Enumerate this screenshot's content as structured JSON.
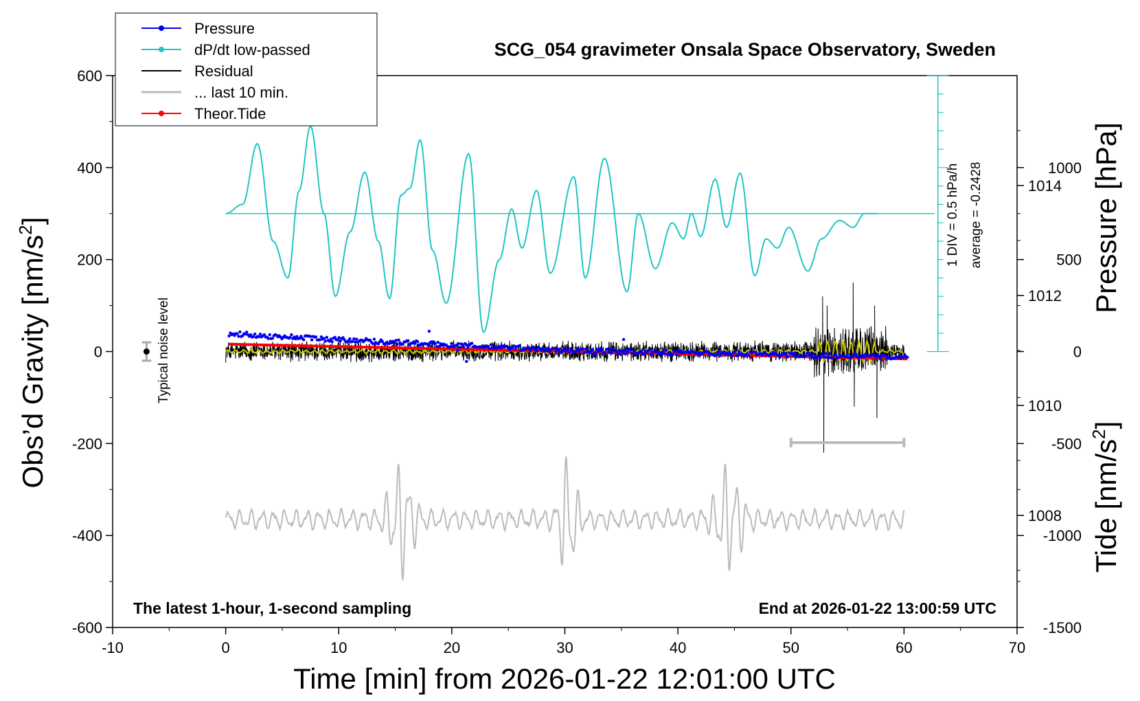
{
  "chart_data": {
    "type": "line",
    "title": "SCG_054 gravimeter Onsala Space Observatory, Sweden",
    "xlabel": "Time [min] from 2026-01-22 12:01:00 UTC",
    "ylabel_left": "Obs’d Gravity [nm/s²]",
    "ylabel_left_main": "Obs’d Gravity [nm/s",
    "ylabel_left_sup": "2",
    "ylabel_left_end": "]",
    "ylabel_right_top": "Pressure [hPa]",
    "ylabel_right_bottom": "Tide [nm/s²]",
    "ylabel_right_bottom_main": "Tide [nm/s",
    "ylabel_right_bottom_sup": "2",
    "ylabel_right_bottom_end": "]",
    "xlim": [
      -10,
      70
    ],
    "ylim_left": [
      -600,
      600
    ],
    "ylim_pressure": [
      1005.96,
      1016.0
    ],
    "ylim_tide": [
      -1500,
      1500
    ],
    "x_ticks": [
      "-10",
      "0",
      "10",
      "20",
      "30",
      "40",
      "50",
      "60",
      "70"
    ],
    "y_ticks_left": [
      "600",
      "400",
      "200",
      "0",
      "-200",
      "-400",
      "-600"
    ],
    "y_ticks_pressure": [
      "1014",
      "1012",
      "1010",
      "1008"
    ],
    "y_ticks_tide": [
      "1000",
      "500",
      "0",
      "-500",
      "-1000",
      "-1500"
    ],
    "legend": [
      {
        "label": "Pressure",
        "color": "#0000ee",
        "marker": true
      },
      {
        "label": "dP/dt low-passed",
        "color": "#22c4c4",
        "marker": true
      },
      {
        "label": "Residual",
        "color": "#000000",
        "marker": false
      },
      {
        "label": "... last 10 min.",
        "color": "#bbbbbb",
        "marker": false
      },
      {
        "label": "Theor.Tide",
        "color": "#ff0000",
        "marker": true
      }
    ],
    "annotations": {
      "noise_label": "Typical noise level",
      "div_label": "1 DIV = 0.5 hPa/h",
      "average_label": "average = -0.2428",
      "bottom_left": "The latest 1-hour, 1-second sampling",
      "bottom_right": "End at 2026-01-22 13:00:59 UTC"
    },
    "series": [
      {
        "name": "Pressure",
        "axis": "pressure_hPa",
        "x": [
          0.3,
          5,
          10,
          15,
          20,
          25,
          30,
          35,
          40,
          45,
          50,
          55,
          60.3
        ],
        "values": [
          1011.3,
          1011.25,
          1011.2,
          1011.15,
          1011.1,
          1011.05,
          1011.0,
          1010.98,
          1010.96,
          1010.94,
          1010.92,
          1010.9,
          1010.88
        ]
      },
      {
        "name": "dP/dt low-passed",
        "axis": "gravity_nm_s2",
        "x": [
          0,
          1.5,
          2.8,
          4.2,
          5.5,
          6.5,
          7.5,
          8.7,
          9.7,
          11,
          12.3,
          13.5,
          14.5,
          15.5,
          16.3,
          17.2,
          18.3,
          19.5,
          21.5,
          22.8,
          24.2,
          25.3,
          26.2,
          27.5,
          28.7,
          30.8,
          31.8,
          33.5,
          35.5,
          36.5,
          38,
          39.5,
          40.5,
          41.2,
          42,
          43.3,
          44.3,
          45.5,
          46.8,
          47.8,
          48.8,
          49.8,
          51.5,
          52.7,
          54.3,
          55.5,
          56.5,
          57.8
        ],
        "values": [
          300,
          320,
          452,
          240,
          160,
          350,
          490,
          300,
          120,
          260,
          390,
          240,
          115,
          340,
          355,
          460,
          220,
          105,
          430,
          42,
          200,
          310,
          225,
          350,
          170,
          380,
          160,
          420,
          130,
          300,
          180,
          280,
          245,
          300,
          250,
          375,
          270,
          388,
          165,
          245,
          225,
          270,
          175,
          245,
          285,
          270,
          300,
          300
        ]
      },
      {
        "name": "Residual",
        "axis": "gravity_nm_s2",
        "x": [
          0,
          60
        ],
        "values": [
          0,
          0
        ]
      },
      {
        "name": "... last 10 min.",
        "axis": "gravity_nm_s2",
        "x": [
          0,
          60
        ],
        "values": [
          -365,
          -360
        ]
      },
      {
        "name": "Theor.Tide",
        "axis": "tide_nm_s2",
        "x": [
          0.3,
          60.3
        ],
        "values": [
          40,
          -40
        ]
      }
    ],
    "noise_bar": {
      "x": -7,
      "y": 0,
      "err": 20
    },
    "last10_bar": {
      "x0": 50,
      "x1": 60,
      "y": -198
    },
    "pressure_ref_level": 300
  }
}
